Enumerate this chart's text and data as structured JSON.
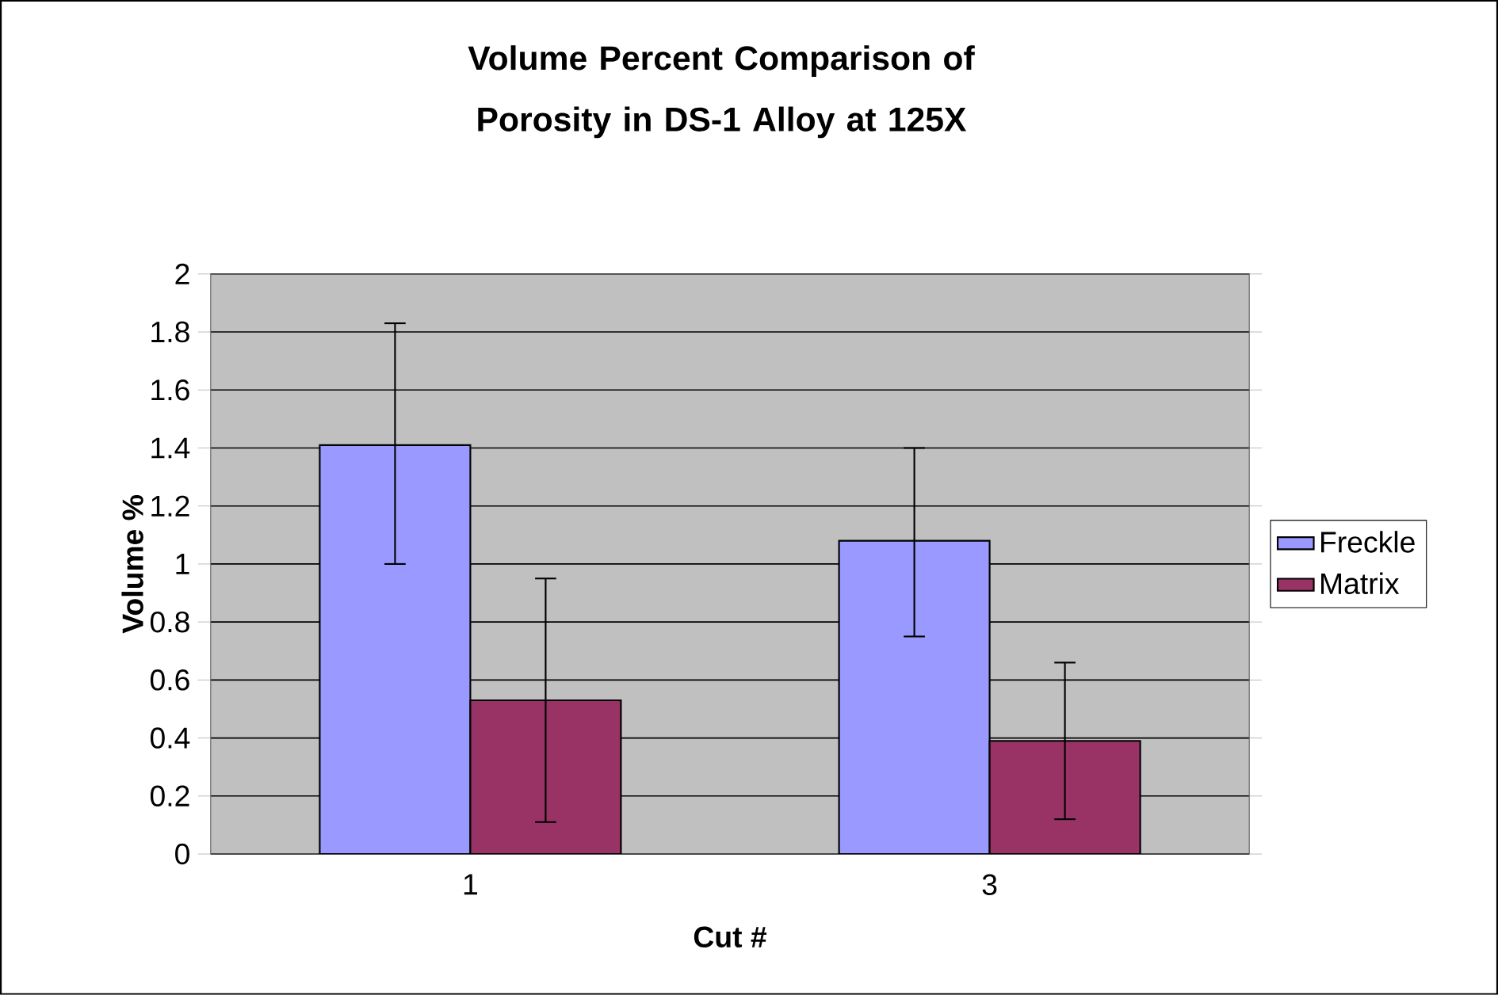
{
  "chart_data": {
    "type": "bar",
    "title": "Volume Percent Comparison of Porosity in DS-1 Alloy at 125X",
    "xlabel": "Cut #",
    "ylabel": "Volume %",
    "categories": [
      "1",
      "3"
    ],
    "series": [
      {
        "name": "Freckle",
        "color": "#9999ff",
        "values": [
          1.41,
          1.08
        ],
        "errors": [
          [
            1.0,
            1.83
          ],
          [
            0.75,
            1.4
          ]
        ]
      },
      {
        "name": "Matrix",
        "color": "#993366",
        "values": [
          0.53,
          0.39
        ],
        "errors": [
          [
            0.11,
            0.95
          ],
          [
            0.12,
            0.66
          ]
        ]
      }
    ],
    "ylim": [
      0,
      2
    ],
    "yticks": [
      0,
      0.2,
      0.4,
      0.6,
      0.8,
      1,
      1.2,
      1.4,
      1.6,
      1.8,
      2
    ],
    "grid": "y",
    "legend": "right"
  }
}
